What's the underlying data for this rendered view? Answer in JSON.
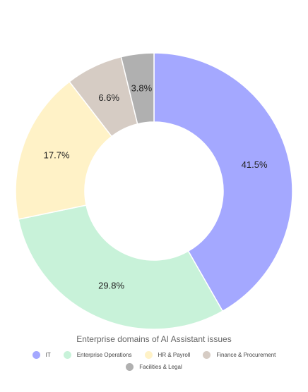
{
  "chart_data": {
    "type": "pie",
    "donut": true,
    "title": "Enterprise domains of AI Assistant issues",
    "categories": [
      "IT",
      "Enterprise Operations",
      "HR & Payroll",
      "Finance & Procurement",
      "Facilities & Legal"
    ],
    "values": [
      41.5,
      29.8,
      17.7,
      6.6,
      3.8
    ],
    "value_labels": [
      "41.5%",
      "29.8%",
      "17.7%",
      "6.6%",
      "3.8%"
    ],
    "colors": [
      "#a4a8ff",
      "#c8f2d9",
      "#fff2c7",
      "#d6ccc4",
      "#b0b0b0"
    ],
    "legend_position": "bottom",
    "start_angle": "top, clockwise"
  }
}
